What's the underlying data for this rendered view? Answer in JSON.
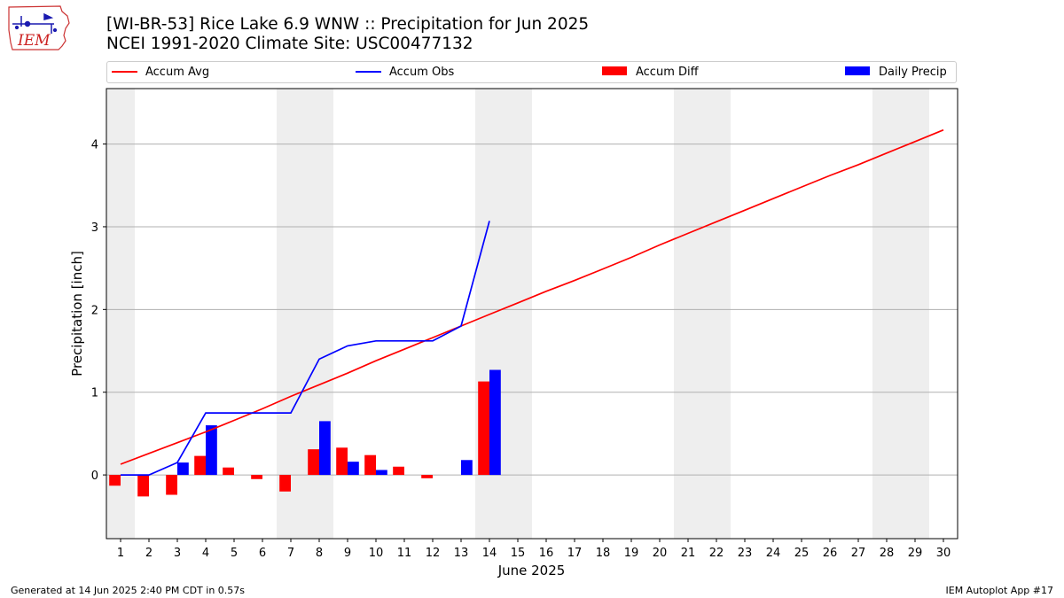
{
  "header": {
    "title_line1": "[WI-BR-53] Rice Lake 6.9 WNW :: Precipitation for Jun 2025",
    "title_line2": "NCEI 1991-2020 Climate Site: USC00477132"
  },
  "logo": {
    "text": "IEM",
    "icon": "iem-iowa-logo-icon"
  },
  "footer": {
    "left": "Generated at 14 Jun 2025 2:40 PM CDT in 0.57s",
    "right": "IEM Autoplot App #17"
  },
  "colors": {
    "avg": "#ff0000",
    "obs": "#0000ff",
    "diff": "#ff0000",
    "daily": "#0000ff",
    "weekend": "#eeeeee",
    "grid": "#b0b0b0"
  },
  "chart_data": {
    "type": "bar",
    "xlabel": "June 2025",
    "ylabel": "Precipitation [inch]",
    "xlim": [
      0.5,
      30.5
    ],
    "ylim": [
      -0.77,
      4.67
    ],
    "yticks": [
      0,
      1,
      2,
      3,
      4
    ],
    "x": [
      1,
      2,
      3,
      4,
      5,
      6,
      7,
      8,
      9,
      10,
      11,
      12,
      13,
      14,
      15,
      16,
      17,
      18,
      19,
      20,
      21,
      22,
      23,
      24,
      25,
      26,
      27,
      28,
      29,
      30
    ],
    "weekend_days": [
      1,
      7,
      8,
      14,
      15,
      21,
      22,
      28,
      29
    ],
    "grid": "horizontal",
    "legend": {
      "placement": "top",
      "entries": [
        "Accum Avg",
        "Accum Obs",
        "Accum Diff",
        "Daily Precip"
      ]
    },
    "series": [
      {
        "name": "Accum Avg",
        "kind": "line",
        "x": [
          1,
          2,
          3,
          4,
          5,
          6,
          7,
          8,
          9,
          10,
          11,
          12,
          13,
          14,
          15,
          16,
          17,
          18,
          19,
          20,
          21,
          22,
          23,
          24,
          25,
          26,
          27,
          28,
          29,
          30
        ],
        "values": [
          0.13,
          0.26,
          0.39,
          0.52,
          0.66,
          0.8,
          0.95,
          1.09,
          1.23,
          1.38,
          1.52,
          1.66,
          1.8,
          1.94,
          2.08,
          2.22,
          2.35,
          2.49,
          2.63,
          2.78,
          2.92,
          3.06,
          3.2,
          3.34,
          3.48,
          3.62,
          3.75,
          3.89,
          4.03,
          4.17
        ]
      },
      {
        "name": "Accum Obs",
        "kind": "line",
        "x": [
          1,
          2,
          3,
          4,
          5,
          6,
          7,
          8,
          9,
          10,
          11,
          12,
          13,
          14
        ],
        "values": [
          0.0,
          0.0,
          0.15,
          0.75,
          0.75,
          0.75,
          0.75,
          1.4,
          1.56,
          1.62,
          1.62,
          1.62,
          1.8,
          3.07
        ]
      },
      {
        "name": "Accum Diff",
        "kind": "bar",
        "x": [
          1,
          2,
          3,
          4,
          5,
          6,
          7,
          8,
          9,
          10,
          11,
          12,
          13,
          14
        ],
        "values": [
          -0.13,
          -0.26,
          -0.24,
          0.23,
          0.09,
          -0.05,
          -0.2,
          0.31,
          0.33,
          0.24,
          0.1,
          -0.04,
          0.0,
          1.13
        ]
      },
      {
        "name": "Daily Precip",
        "kind": "bar",
        "x": [
          1,
          2,
          3,
          4,
          5,
          6,
          7,
          8,
          9,
          10,
          11,
          12,
          13,
          14
        ],
        "values": [
          0.0,
          0.0,
          0.15,
          0.6,
          0.0,
          0.0,
          0.0,
          0.65,
          0.16,
          0.06,
          0.0,
          0.0,
          0.18,
          1.27
        ]
      }
    ]
  }
}
